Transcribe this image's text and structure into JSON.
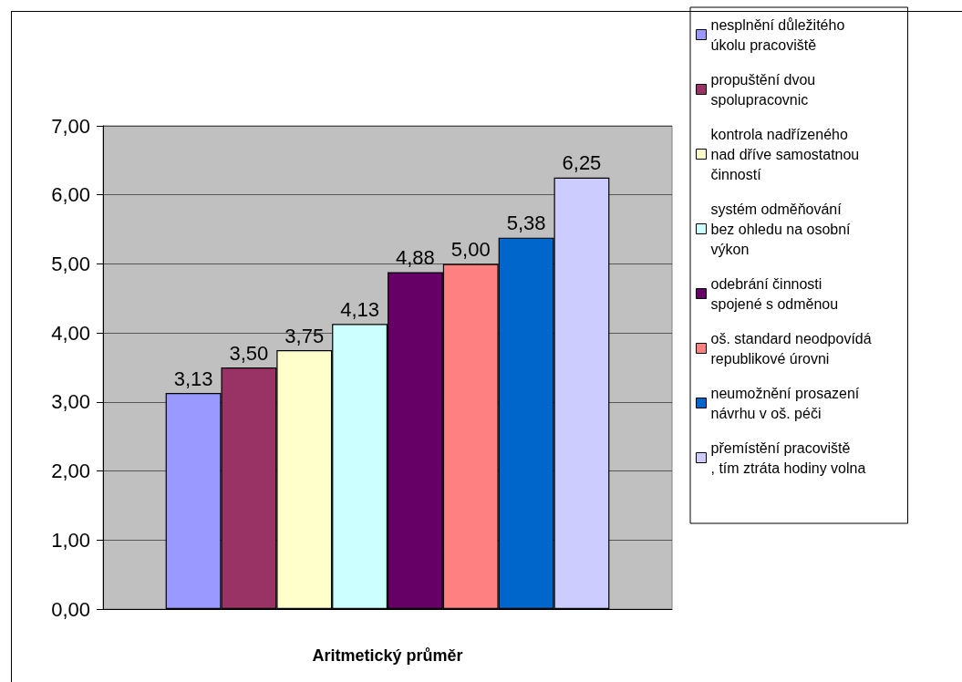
{
  "chart_data": {
    "type": "bar",
    "xlabel": "Aritmetický průměr",
    "categories": [
      null
    ],
    "series": [
      {
        "name": "nesplnění důležitého úkolu pracoviště",
        "color": "#9999ff",
        "values": [
          3.13
        ],
        "value_labels": [
          "3,13"
        ]
      },
      {
        "name": "propuštění dvou spolupracovnic",
        "color": "#993366",
        "values": [
          3.5
        ],
        "value_labels": [
          "3,50"
        ]
      },
      {
        "name": "kontrola nadřízeného nad dříve samostatnou činností",
        "color": "#ffffcc",
        "values": [
          3.75
        ],
        "value_labels": [
          "3,75"
        ]
      },
      {
        "name": "systém odměňování bez ohledu na osobní výkon",
        "color": "#ccffff",
        "values": [
          4.13
        ],
        "value_labels": [
          "4,13"
        ]
      },
      {
        "name": "odebrání činnosti spojené s odměnou",
        "color": "#660066",
        "values": [
          4.88
        ],
        "value_labels": [
          "4,88"
        ]
      },
      {
        "name": "oš. standard neodpovídá republikové úrovni",
        "color": "#ff8080",
        "values": [
          5.0
        ],
        "value_labels": [
          "5,00"
        ]
      },
      {
        "name": "neumožnění prosazení návrhu v oš. péči",
        "color": "#0066cc",
        "values": [
          5.38
        ],
        "value_labels": [
          "5,38"
        ]
      },
      {
        "name": "přemístění pracoviště, tím ztráta hodiny volna",
        "color": "#ccccff",
        "values": [
          6.25
        ],
        "value_labels": [
          "6,25"
        ]
      }
    ],
    "ylim": [
      0,
      7
    ],
    "yticks": [
      {
        "value": 0,
        "label": "0,00"
      },
      {
        "value": 1,
        "label": "1,00"
      },
      {
        "value": 2,
        "label": "2,00"
      },
      {
        "value": 3,
        "label": "3,00"
      },
      {
        "value": 4,
        "label": "4,00"
      },
      {
        "value": 5,
        "label": "5,00"
      },
      {
        "value": 6,
        "label": "6,00"
      },
      {
        "value": 7,
        "label": "7,00"
      }
    ],
    "grid": "y",
    "legend": "right"
  }
}
